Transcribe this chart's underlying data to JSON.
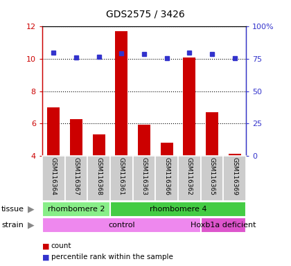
{
  "title": "GDS2575 / 3426",
  "samples": [
    "GSM116364",
    "GSM116367",
    "GSM116368",
    "GSM116361",
    "GSM116363",
    "GSM116366",
    "GSM116362",
    "GSM116365",
    "GSM116369"
  ],
  "counts": [
    7.0,
    6.25,
    5.3,
    11.7,
    5.9,
    4.8,
    10.1,
    6.7,
    4.1
  ],
  "percentiles": [
    80.0,
    76.0,
    76.5,
    79.5,
    78.5,
    75.5,
    80.0,
    78.5,
    75.5
  ],
  "ylim_left": [
    4,
    12
  ],
  "ylim_right": [
    0,
    100
  ],
  "yticks_left": [
    4,
    6,
    8,
    10,
    12
  ],
  "yticks_right": [
    0,
    25,
    50,
    75,
    100
  ],
  "ytick_labels_right": [
    "0",
    "25",
    "50",
    "75",
    "100%"
  ],
  "bar_color": "#cc0000",
  "dot_color": "#3333cc",
  "tissue_groups": [
    {
      "label": "rhombomere 2",
      "start": 0,
      "end": 3,
      "color": "#88ee88"
    },
    {
      "label": "rhombomere 4",
      "start": 3,
      "end": 9,
      "color": "#44cc44"
    }
  ],
  "strain_groups": [
    {
      "label": "control",
      "start": 0,
      "end": 7,
      "color": "#ee88ee"
    },
    {
      "label": "Hoxb1a deficient",
      "start": 7,
      "end": 9,
      "color": "#dd55cc"
    }
  ],
  "legend_count_label": "count",
  "legend_pct_label": "percentile rank within the sample",
  "left_axis_color": "#cc0000",
  "right_axis_color": "#3333cc",
  "sample_bg_color": "#cccccc",
  "plot_bg": "#ffffff"
}
